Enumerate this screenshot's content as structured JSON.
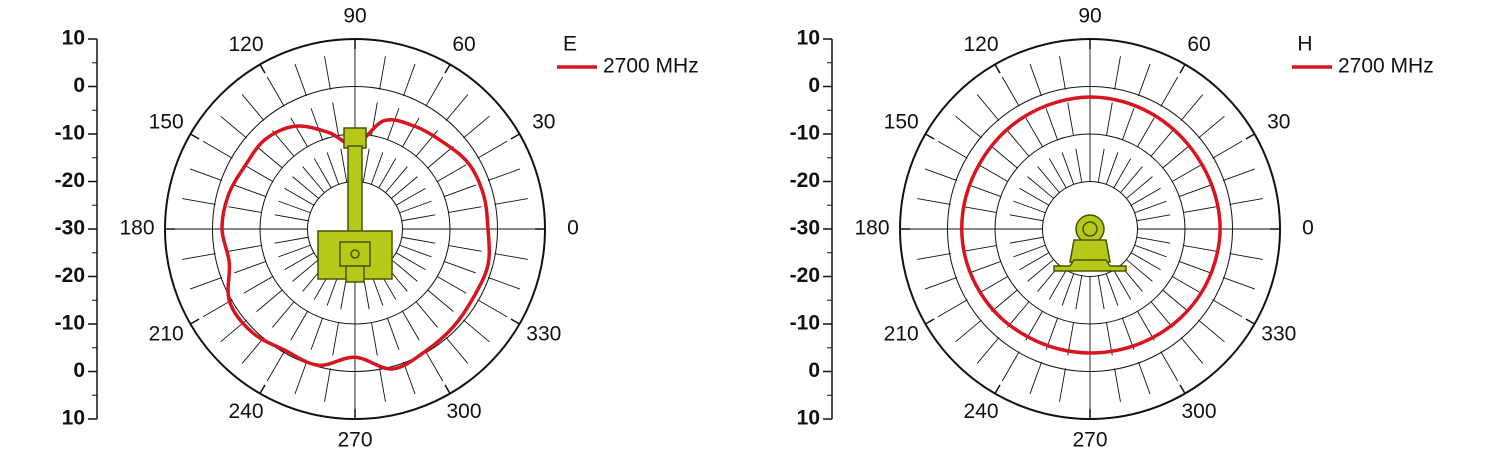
{
  "chart_data": [
    {
      "type": "polar",
      "legend_title": "E",
      "rlim": [
        -30,
        10
      ],
      "rticks": [
        10,
        0,
        -10,
        -20,
        -30,
        -20,
        -10,
        0,
        10
      ],
      "angle_ticks": [
        0,
        30,
        60,
        90,
        120,
        150,
        180,
        210,
        240,
        270,
        300,
        330
      ],
      "series": [
        {
          "name": "2700 MHz",
          "color": "#d7141f",
          "theta": [
            0,
            15,
            30,
            45,
            60,
            75,
            90,
            105,
            120,
            135,
            150,
            165,
            180,
            195,
            210,
            225,
            240,
            255,
            270,
            285,
            300,
            315,
            330,
            345
          ],
          "values": [
            -2,
            -2,
            -2.4,
            -4,
            -5,
            -6.4,
            -12.3,
            -9,
            -5,
            -3.3,
            -3.3,
            -2.4,
            -2,
            -2.6,
            0.5,
            0.7,
            -0.5,
            -0.3,
            -3,
            0.5,
            -0.3,
            -0.8,
            -1.2,
            -1
          ]
        }
      ]
    },
    {
      "type": "polar",
      "legend_title": "H",
      "rlim": [
        -30,
        10
      ],
      "rticks": [
        10,
        0,
        -10,
        -20,
        -30,
        -20,
        -10,
        0,
        10
      ],
      "angle_ticks": [
        0,
        30,
        60,
        90,
        120,
        150,
        180,
        210,
        240,
        270,
        300,
        330
      ],
      "series": [
        {
          "name": "2700 MHz",
          "color": "#d7141f",
          "theta": [
            0,
            15,
            30,
            45,
            60,
            75,
            90,
            105,
            120,
            135,
            150,
            165,
            180,
            195,
            210,
            225,
            240,
            255,
            270,
            285,
            300,
            315,
            330,
            345
          ],
          "values": [
            -2.6,
            -2.7,
            -2.8,
            -2.7,
            -2.5,
            -2.3,
            -2.2,
            -2.4,
            -2.6,
            -2.8,
            -3,
            -3,
            -3,
            -3.1,
            -3.3,
            -3.5,
            -3.8,
            -3.9,
            -3.9,
            -3.8,
            -3.6,
            -3.3,
            -3,
            -2.8
          ]
        }
      ]
    }
  ]
}
